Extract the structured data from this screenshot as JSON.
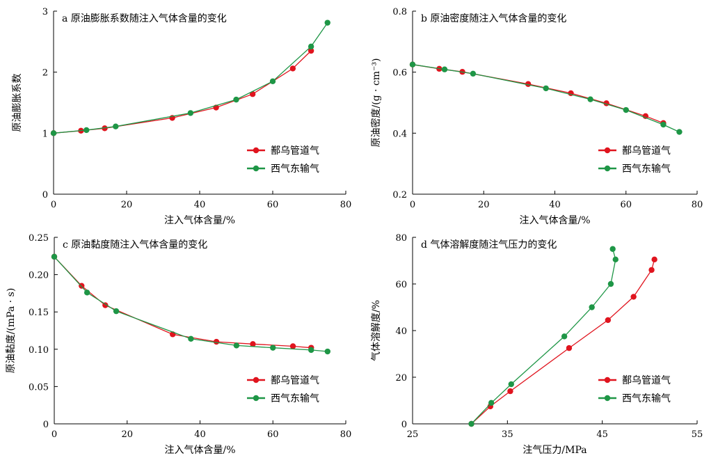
{
  "figure": {
    "background": "#ffffff"
  },
  "colors": {
    "series1": "#e0141e",
    "series2": "#1e9646"
  },
  "chart_data": [
    {
      "type": "line",
      "title": "a 原油膨胀系数随注入气体含量的变化",
      "xlabel": "注入气体含量/%",
      "ylabel": "原油膨胀系数",
      "xlim": [
        0,
        80
      ],
      "ylim": [
        0,
        3
      ],
      "xticks": [
        0,
        20,
        40,
        60,
        80
      ],
      "xtick_labels": [
        "0",
        "20",
        "40",
        "60",
        "80"
      ],
      "yticks": [
        0,
        1,
        2,
        3
      ],
      "ytick_labels": [
        "0",
        "1",
        "2",
        "3"
      ],
      "legend_position": "lower-right",
      "series": [
        {
          "name": "鄯乌管道气",
          "color": "#e0141e",
          "x": [
            0,
            7.5,
            14,
            32.5,
            44.5,
            54.5,
            65.5,
            70.5
          ],
          "y": [
            1.0,
            1.04,
            1.08,
            1.25,
            1.42,
            1.64,
            2.06,
            2.35
          ]
        },
        {
          "name": "西气东输气",
          "color": "#1e9646",
          "x": [
            0,
            9,
            17,
            37.5,
            50,
            60,
            70.5,
            75
          ],
          "y": [
            1.0,
            1.05,
            1.11,
            1.33,
            1.55,
            1.85,
            2.42,
            2.81
          ]
        }
      ]
    },
    {
      "type": "line",
      "title": "b 原油密度随注入气体含量的变化",
      "xlabel": "注入气体含量/%",
      "ylabel": "原油密度/(g · cm⁻³)",
      "xlim": [
        0,
        80
      ],
      "ylim": [
        0.2,
        0.8
      ],
      "xticks": [
        0,
        20,
        40,
        60,
        80
      ],
      "xtick_labels": [
        "0",
        "20",
        "40",
        "60",
        "80"
      ],
      "yticks": [
        0.2,
        0.4,
        0.6,
        0.8
      ],
      "ytick_labels": [
        "0.2",
        "0.4",
        "0.6",
        "0.8"
      ],
      "legend_position": "lower-right",
      "series": [
        {
          "name": "鄯乌管道气",
          "color": "#e0141e",
          "x": [
            0,
            7.5,
            14,
            32.5,
            44.5,
            54.5,
            65.5,
            70.5
          ],
          "y": [
            0.625,
            0.611,
            0.601,
            0.561,
            0.531,
            0.498,
            0.456,
            0.433
          ]
        },
        {
          "name": "西气东输气",
          "color": "#1e9646",
          "x": [
            0,
            9,
            17,
            37.5,
            50,
            60,
            70.5,
            75
          ],
          "y": [
            0.625,
            0.609,
            0.595,
            0.547,
            0.511,
            0.476,
            0.428,
            0.404
          ]
        }
      ]
    },
    {
      "type": "line",
      "title": "c 原油黏度随注入气体含量的变化",
      "xlabel": "注入气体含量/%",
      "ylabel": "原油黏度/(mPa · s)",
      "xlim": [
        0,
        80
      ],
      "ylim": [
        0,
        0.25
      ],
      "xticks": [
        0,
        20,
        40,
        60,
        80
      ],
      "xtick_labels": [
        "0",
        "20",
        "40",
        "60",
        "80"
      ],
      "yticks": [
        0,
        0.05,
        0.1,
        0.15,
        0.2,
        0.25
      ],
      "ytick_labels": [
        "0",
        "0.05",
        "0.10",
        "0.15",
        "0.20",
        "0.25"
      ],
      "legend_position": "lower-right",
      "series": [
        {
          "name": "鄯乌管道气",
          "color": "#e0141e",
          "x": [
            0,
            7.5,
            14,
            32.5,
            44.5,
            54.5,
            65.5,
            70.5
          ],
          "y": [
            0.224,
            0.185,
            0.159,
            0.12,
            0.11,
            0.107,
            0.104,
            0.102
          ]
        },
        {
          "name": "西气东输气",
          "color": "#1e9646",
          "x": [
            0,
            9,
            17,
            37.5,
            50,
            60,
            70.5,
            75
          ],
          "y": [
            0.224,
            0.176,
            0.151,
            0.114,
            0.105,
            0.102,
            0.099,
            0.097
          ]
        }
      ]
    },
    {
      "type": "line",
      "title": "d 气体溶解度随注气压力的变化",
      "xlabel": "注气压力/MPa",
      "ylabel": "气体溶解度/%",
      "xlim": [
        25,
        55
      ],
      "ylim": [
        0,
        80
      ],
      "xticks": [
        25,
        35,
        45,
        55
      ],
      "xtick_labels": [
        "25",
        "35",
        "45",
        "55"
      ],
      "yticks": [
        0,
        20,
        40,
        60,
        80
      ],
      "ytick_labels": [
        "0",
        "20",
        "40",
        "60",
        "80"
      ],
      "legend_position": "lower-right",
      "series": [
        {
          "name": "鄯乌管道气",
          "color": "#e0141e",
          "x": [
            31.2,
            33.2,
            35.3,
            41.5,
            45.6,
            48.3,
            50.2,
            50.5
          ],
          "y": [
            0,
            7.5,
            14,
            32.5,
            44.5,
            54.5,
            66,
            70.5
          ]
        },
        {
          "name": "西气东输气",
          "color": "#1e9646",
          "x": [
            31.2,
            33.3,
            35.4,
            41.0,
            43.9,
            45.9,
            46.4,
            46.1
          ],
          "y": [
            0,
            9,
            17,
            37.5,
            50,
            60,
            70.5,
            75
          ]
        }
      ]
    }
  ]
}
